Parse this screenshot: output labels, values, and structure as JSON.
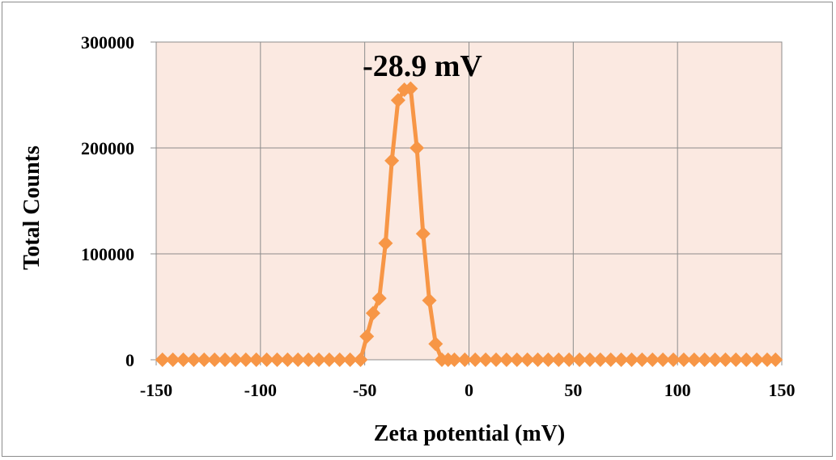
{
  "chart_data": {
    "type": "line",
    "title": "",
    "xlabel": "Zeta potential  (mV)",
    "ylabel": "Total Counts",
    "xlim": [
      -150,
      150
    ],
    "ylim": [
      0,
      300000
    ],
    "xticks": [
      "-150",
      "-100",
      "-50",
      "0",
      "50",
      "100",
      "150"
    ],
    "yticks": [
      "0",
      "100000",
      "200000",
      "300000"
    ],
    "grid": true,
    "legend": "none",
    "annotation": {
      "text": "-28.9 mV",
      "x": -28.9,
      "y": 280000
    },
    "colors": {
      "series": "#f79646",
      "plot_bg": "#fbe9e1",
      "grid": "#8c8c8c"
    },
    "series": [
      {
        "x": [
          -147,
          -142,
          -137,
          -132,
          -127,
          -122,
          -117,
          -112,
          -107,
          -102,
          -97,
          -92,
          -87,
          -82,
          -77,
          -72,
          -67,
          -62,
          -57,
          -52,
          -49,
          -46,
          -43,
          -40,
          -37,
          -34,
          -31,
          -28,
          -25,
          -22,
          -19,
          -16,
          -13,
          -10,
          -7,
          -2,
          3,
          8,
          13,
          18,
          23,
          28,
          33,
          38,
          43,
          48,
          53,
          58,
          63,
          68,
          73,
          78,
          83,
          88,
          93,
          98,
          103,
          108,
          113,
          118,
          123,
          128,
          133,
          138,
          143,
          147
        ],
        "values": [
          0,
          0,
          0,
          0,
          0,
          0,
          0,
          0,
          0,
          0,
          0,
          0,
          0,
          0,
          0,
          0,
          0,
          0,
          0,
          0,
          22000,
          44000,
          58000,
          110000,
          188000,
          245000,
          255000,
          256000,
          200000,
          119000,
          56000,
          15000,
          0,
          0,
          0,
          0,
          0,
          0,
          0,
          0,
          0,
          0,
          0,
          0,
          0,
          0,
          0,
          0,
          0,
          0,
          0,
          0,
          0,
          0,
          0,
          0,
          0,
          0,
          0,
          0,
          0,
          0,
          0,
          0,
          0,
          0
        ]
      }
    ]
  }
}
